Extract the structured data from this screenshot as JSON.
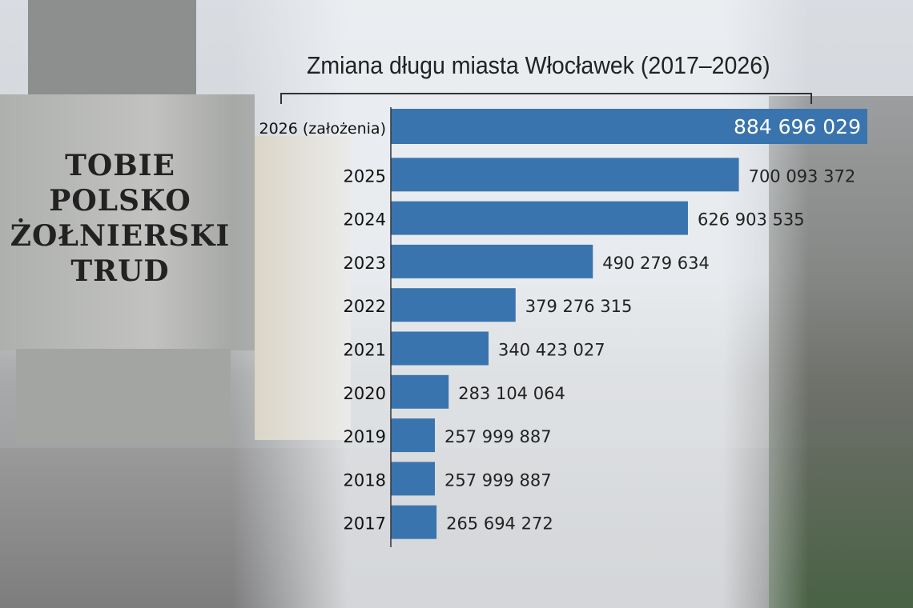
{
  "plaque_text": [
    "TOBIE",
    "POLSKO",
    "ŻOŁNIERSKI",
    "TRUD"
  ],
  "chart_data": {
    "type": "bar",
    "orientation": "horizontal",
    "title": "Zmiana długu miasta Włocławek (2017–2026)",
    "categories": [
      "2026 (założenia)",
      "2025",
      "2024",
      "2023",
      "2022",
      "2021",
      "2020",
      "2019",
      "2018",
      "2017"
    ],
    "values": [
      884696029,
      700093372,
      626903535,
      490279634,
      379276315,
      340423027,
      283104064,
      257999887,
      257999887,
      265694272
    ],
    "labels": [
      "884 696 029",
      "700 093 372",
      "626 903 535",
      "490 279 634",
      "379 276 315",
      "340 423 027",
      "283 104 064",
      "257 999 887",
      "257 999 887",
      "265 694 272"
    ],
    "xlim": [
      200000000,
      884696029
    ],
    "bar_color": "#3a74ae",
    "grid": false
  }
}
